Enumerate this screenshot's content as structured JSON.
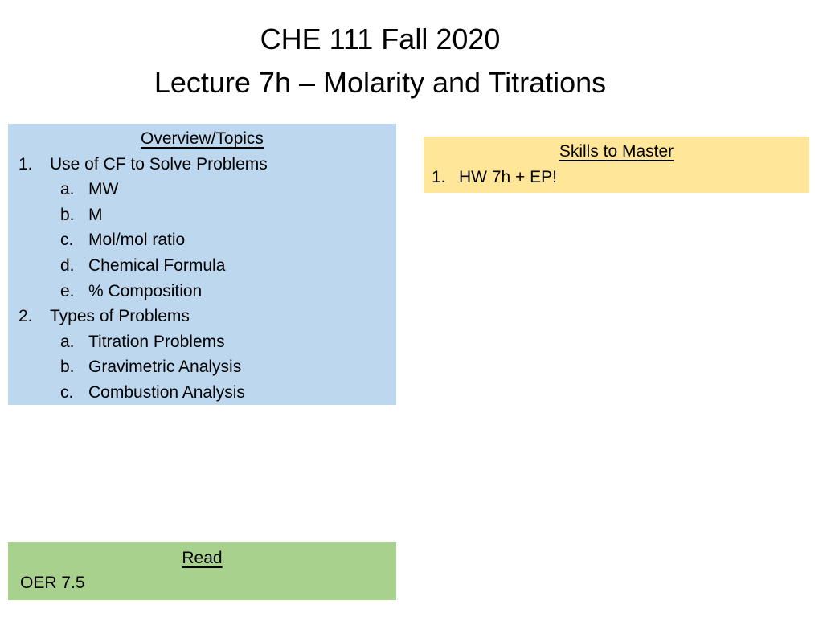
{
  "slide": {
    "title_line1": "CHE 111 Fall 2020",
    "title_line2": "Lecture 7h – Molarity and Titrations"
  },
  "overview_box": {
    "heading": "Overview/Topics",
    "background": "#BDD7EE",
    "items": [
      {
        "marker": "1.",
        "text": "Use of CF to Solve Problems",
        "level": 1
      },
      {
        "marker": "a.",
        "text": "MW",
        "level": 2
      },
      {
        "marker": "b.",
        "text": "M",
        "level": 2
      },
      {
        "marker": "c.",
        "text": "Mol/mol ratio",
        "level": 2
      },
      {
        "marker": "d.",
        "text": "Chemical Formula",
        "level": 2
      },
      {
        "marker": "e.",
        "text": "% Composition",
        "level": 2
      },
      {
        "marker": "2.",
        "text": "Types of Problems",
        "level": 1
      },
      {
        "marker": "a.",
        "text": "Titration Problems",
        "level": 2
      },
      {
        "marker": "b.",
        "text": "Gravimetric Analysis",
        "level": 2
      },
      {
        "marker": "c.",
        "text": "Combustion Analysis",
        "level": 2
      }
    ]
  },
  "skills_box": {
    "heading": "Skills to Master",
    "background": "#FFE699",
    "items": [
      {
        "marker": "1.",
        "text": "HW 7h + EP!",
        "level": 1
      }
    ]
  },
  "read_box": {
    "heading": "Read",
    "background": "#A9D18E",
    "text": "OER 7.5"
  },
  "colors": {
    "overview_fill": "#BDD7EE",
    "skills_fill": "#FFE699",
    "read_fill": "#A9D18E",
    "text": "#000000",
    "slide_background": "#FFFFFF"
  }
}
